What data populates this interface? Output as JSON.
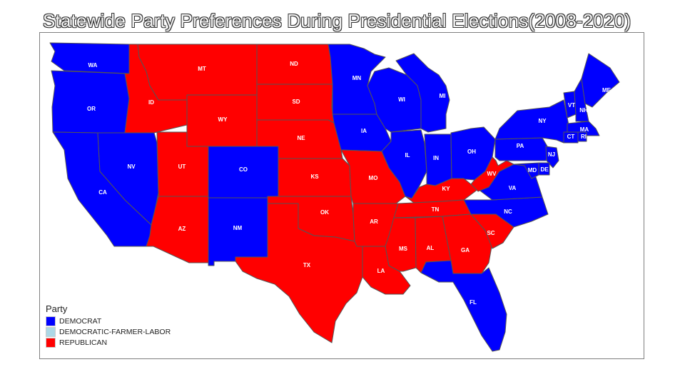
{
  "title": "Statewide Party Preferences During Presidential Elections(2008-2020)",
  "legend": {
    "title": "Party",
    "items": [
      {
        "key": "DEMOCRAT",
        "label": "DEMOCRAT",
        "color": "#0000ff"
      },
      {
        "key": "DEMOCRATIC-FARMER-LABOR",
        "label": "DEMOCRATIC-FARMER-LABOR",
        "color": "#add8e6"
      },
      {
        "key": "REPUBLICAN",
        "label": "REPUBLICAN",
        "color": "#ff0000"
      }
    ]
  },
  "states": [
    {
      "abbr": "WA",
      "party": "DEMOCRAT"
    },
    {
      "abbr": "OR",
      "party": "DEMOCRAT"
    },
    {
      "abbr": "CA",
      "party": "DEMOCRAT"
    },
    {
      "abbr": "NV",
      "party": "DEMOCRAT"
    },
    {
      "abbr": "ID",
      "party": "REPUBLICAN"
    },
    {
      "abbr": "MT",
      "party": "REPUBLICAN"
    },
    {
      "abbr": "WY",
      "party": "REPUBLICAN"
    },
    {
      "abbr": "UT",
      "party": "REPUBLICAN"
    },
    {
      "abbr": "AZ",
      "party": "REPUBLICAN"
    },
    {
      "abbr": "CO",
      "party": "DEMOCRAT"
    },
    {
      "abbr": "NM",
      "party": "DEMOCRAT"
    },
    {
      "abbr": "ND",
      "party": "REPUBLICAN"
    },
    {
      "abbr": "SD",
      "party": "REPUBLICAN"
    },
    {
      "abbr": "NE",
      "party": "REPUBLICAN"
    },
    {
      "abbr": "KS",
      "party": "REPUBLICAN"
    },
    {
      "abbr": "OK",
      "party": "REPUBLICAN"
    },
    {
      "abbr": "TX",
      "party": "REPUBLICAN"
    },
    {
      "abbr": "MN",
      "party": "DEMOCRAT"
    },
    {
      "abbr": "IA",
      "party": "DEMOCRAT"
    },
    {
      "abbr": "MO",
      "party": "REPUBLICAN"
    },
    {
      "abbr": "AR",
      "party": "REPUBLICAN"
    },
    {
      "abbr": "LA",
      "party": "REPUBLICAN"
    },
    {
      "abbr": "WI",
      "party": "DEMOCRAT"
    },
    {
      "abbr": "IL",
      "party": "DEMOCRAT"
    },
    {
      "abbr": "MI",
      "party": "DEMOCRAT"
    },
    {
      "abbr": "IN",
      "party": "DEMOCRAT"
    },
    {
      "abbr": "OH",
      "party": "DEMOCRAT"
    },
    {
      "abbr": "KY",
      "party": "REPUBLICAN"
    },
    {
      "abbr": "TN",
      "party": "REPUBLICAN"
    },
    {
      "abbr": "MS",
      "party": "REPUBLICAN"
    },
    {
      "abbr": "AL",
      "party": "REPUBLICAN"
    },
    {
      "abbr": "GA",
      "party": "REPUBLICAN"
    },
    {
      "abbr": "FL",
      "party": "DEMOCRAT"
    },
    {
      "abbr": "SC",
      "party": "REPUBLICAN"
    },
    {
      "abbr": "NC",
      "party": "DEMOCRAT"
    },
    {
      "abbr": "VA",
      "party": "DEMOCRAT"
    },
    {
      "abbr": "WV",
      "party": "REPUBLICAN"
    },
    {
      "abbr": "PA",
      "party": "DEMOCRAT"
    },
    {
      "abbr": "NY",
      "party": "DEMOCRAT"
    },
    {
      "abbr": "NJ",
      "party": "DEMOCRAT"
    },
    {
      "abbr": "DE",
      "party": "DEMOCRAT"
    },
    {
      "abbr": "MD",
      "party": "DEMOCRAT"
    },
    {
      "abbr": "VT",
      "party": "DEMOCRAT"
    },
    {
      "abbr": "NH",
      "party": "DEMOCRAT"
    },
    {
      "abbr": "ME",
      "party": "DEMOCRAT"
    },
    {
      "abbr": "MA",
      "party": "DEMOCRAT"
    },
    {
      "abbr": "CT",
      "party": "DEMOCRAT"
    },
    {
      "abbr": "RI",
      "party": "DEMOCRAT"
    }
  ]
}
